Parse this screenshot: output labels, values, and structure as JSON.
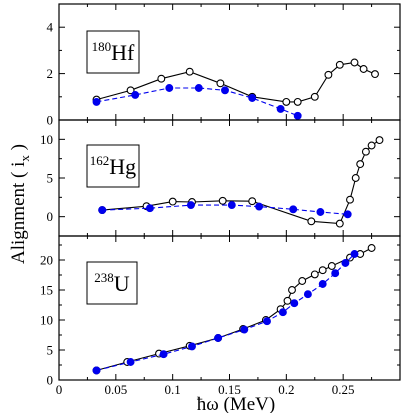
{
  "chart_data": {
    "type": "line",
    "xlabel": "ħω (MeV)",
    "ylabel": "Alignment ( i",
    "ylabel_sub": "x",
    "ylabel_close": " )",
    "x_range": [
      0,
      0.3
    ],
    "x_ticks": [
      0,
      0.05,
      0.1,
      0.15,
      0.2,
      0.25
    ],
    "x_tick_labels": [
      "0",
      "0.05",
      "0.1",
      "0.15",
      "0.2",
      "0.25"
    ],
    "colors": {
      "open": "#000000",
      "filled": "#0000ee",
      "line_open": "#000000",
      "line_filled": "#0000ee"
    },
    "panels": [
      {
        "nucleus_mass": "180",
        "nucleus_symbol": "Hf",
        "y_range": [
          0,
          5
        ],
        "y_ticks": [
          0,
          2,
          4
        ],
        "y_tick_labels": [
          "0",
          "2",
          "4"
        ],
        "series": [
          {
            "style": "open-solid",
            "points": [
              [
                0.033,
                0.88
              ],
              [
                0.063,
                1.28
              ],
              [
                0.09,
                1.78
              ],
              [
                0.115,
                2.08
              ],
              [
                0.142,
                1.58
              ],
              [
                0.17,
                1.0
              ],
              [
                0.2,
                0.78
              ],
              [
                0.21,
                0.78
              ],
              [
                0.225,
                1.0
              ],
              [
                0.237,
                1.95
              ],
              [
                0.247,
                2.38
              ],
              [
                0.26,
                2.48
              ],
              [
                0.268,
                2.2
              ],
              [
                0.278,
                1.98
              ]
            ]
          },
          {
            "style": "filled-dashed",
            "points": [
              [
                0.033,
                0.78
              ],
              [
                0.067,
                1.08
              ],
              [
                0.097,
                1.38
              ],
              [
                0.123,
                1.38
              ],
              [
                0.146,
                1.28
              ],
              [
                0.17,
                0.95
              ],
              [
                0.195,
                0.48
              ],
              [
                0.21,
                0.18
              ]
            ]
          }
        ]
      },
      {
        "nucleus_mass": "162",
        "nucleus_symbol": "Hg",
        "y_range": [
          -2.5,
          12.5
        ],
        "y_ticks": [
          0,
          5,
          10
        ],
        "y_tick_labels": [
          "0",
          "5",
          "10"
        ],
        "series": [
          {
            "style": "open-solid",
            "points": [
              [
                0.038,
                0.85
              ],
              [
                0.077,
                1.35
              ],
              [
                0.1,
                1.95
              ],
              [
                0.117,
                1.9
              ],
              [
                0.144,
                2.05
              ],
              [
                0.17,
                2.0
              ],
              [
                0.222,
                -0.6
              ],
              [
                0.247,
                -0.9
              ],
              [
                0.256,
                2.2
              ],
              [
                0.261,
                5.0
              ],
              [
                0.265,
                6.8
              ],
              [
                0.27,
                8.4
              ],
              [
                0.275,
                9.2
              ],
              [
                0.282,
                9.9
              ]
            ]
          },
          {
            "style": "filled-dashed",
            "points": [
              [
                0.038,
                0.85
              ],
              [
                0.08,
                1.1
              ],
              [
                0.116,
                1.5
              ],
              [
                0.152,
                1.5
              ],
              [
                0.176,
                1.3
              ],
              [
                0.206,
                0.95
              ],
              [
                0.23,
                0.6
              ],
              [
                0.254,
                0.3
              ]
            ]
          }
        ]
      },
      {
        "nucleus_mass": "238",
        "nucleus_symbol": "U",
        "y_range": [
          0,
          24
        ],
        "y_ticks": [
          0,
          5,
          10,
          15,
          20
        ],
        "y_tick_labels": [
          "0",
          "5",
          "10",
          "15",
          "20"
        ],
        "series": [
          {
            "style": "open-solid",
            "points": [
              [
                0.033,
                1.6
              ],
              [
                0.06,
                3.0
              ],
              [
                0.088,
                4.4
              ],
              [
                0.115,
                5.7
              ],
              [
                0.14,
                7.0
              ],
              [
                0.162,
                8.5
              ],
              [
                0.182,
                10.0
              ],
              [
                0.195,
                11.8
              ],
              [
                0.201,
                13.2
              ],
              [
                0.205,
                15.0
              ],
              [
                0.214,
                16.5
              ],
              [
                0.225,
                17.6
              ],
              [
                0.232,
                18.3
              ],
              [
                0.24,
                19.0
              ],
              [
                0.256,
                20.4
              ],
              [
                0.265,
                21.0
              ],
              [
                0.275,
                22.0
              ]
            ]
          },
          {
            "style": "filled-dashed",
            "points": [
              [
                0.033,
                1.6
              ],
              [
                0.063,
                3.0
              ],
              [
                0.092,
                4.3
              ],
              [
                0.117,
                5.6
              ],
              [
                0.14,
                7.0
              ],
              [
                0.163,
                8.4
              ],
              [
                0.183,
                9.8
              ],
              [
                0.197,
                11.3
              ],
              [
                0.207,
                12.8
              ],
              [
                0.219,
                14.3
              ],
              [
                0.232,
                16.0
              ],
              [
                0.243,
                17.8
              ],
              [
                0.252,
                19.5
              ],
              [
                0.26,
                21.0
              ]
            ]
          }
        ]
      }
    ]
  }
}
